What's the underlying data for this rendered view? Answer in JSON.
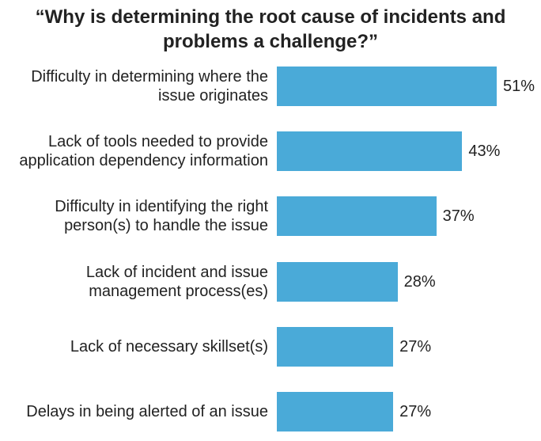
{
  "chart_data": {
    "type": "bar",
    "orientation": "horizontal",
    "title": "“Why is determining the root cause of incidents and problems a challenge?”",
    "categories": [
      "Difficulty in determining where the issue originates",
      "Lack of tools needed to provide application dependency information",
      "Difficulty in identifying the right person(s) to handle the issue",
      "Lack of incident and issue management process(es)",
      "Lack of necessary skillset(s)",
      "Delays in being alerted of an issue"
    ],
    "values": [
      51,
      43,
      37,
      28,
      27,
      27
    ],
    "value_labels": [
      "51%",
      "43%",
      "37%",
      "28%",
      "27%",
      "27%"
    ],
    "color": "#4aaad8"
  }
}
